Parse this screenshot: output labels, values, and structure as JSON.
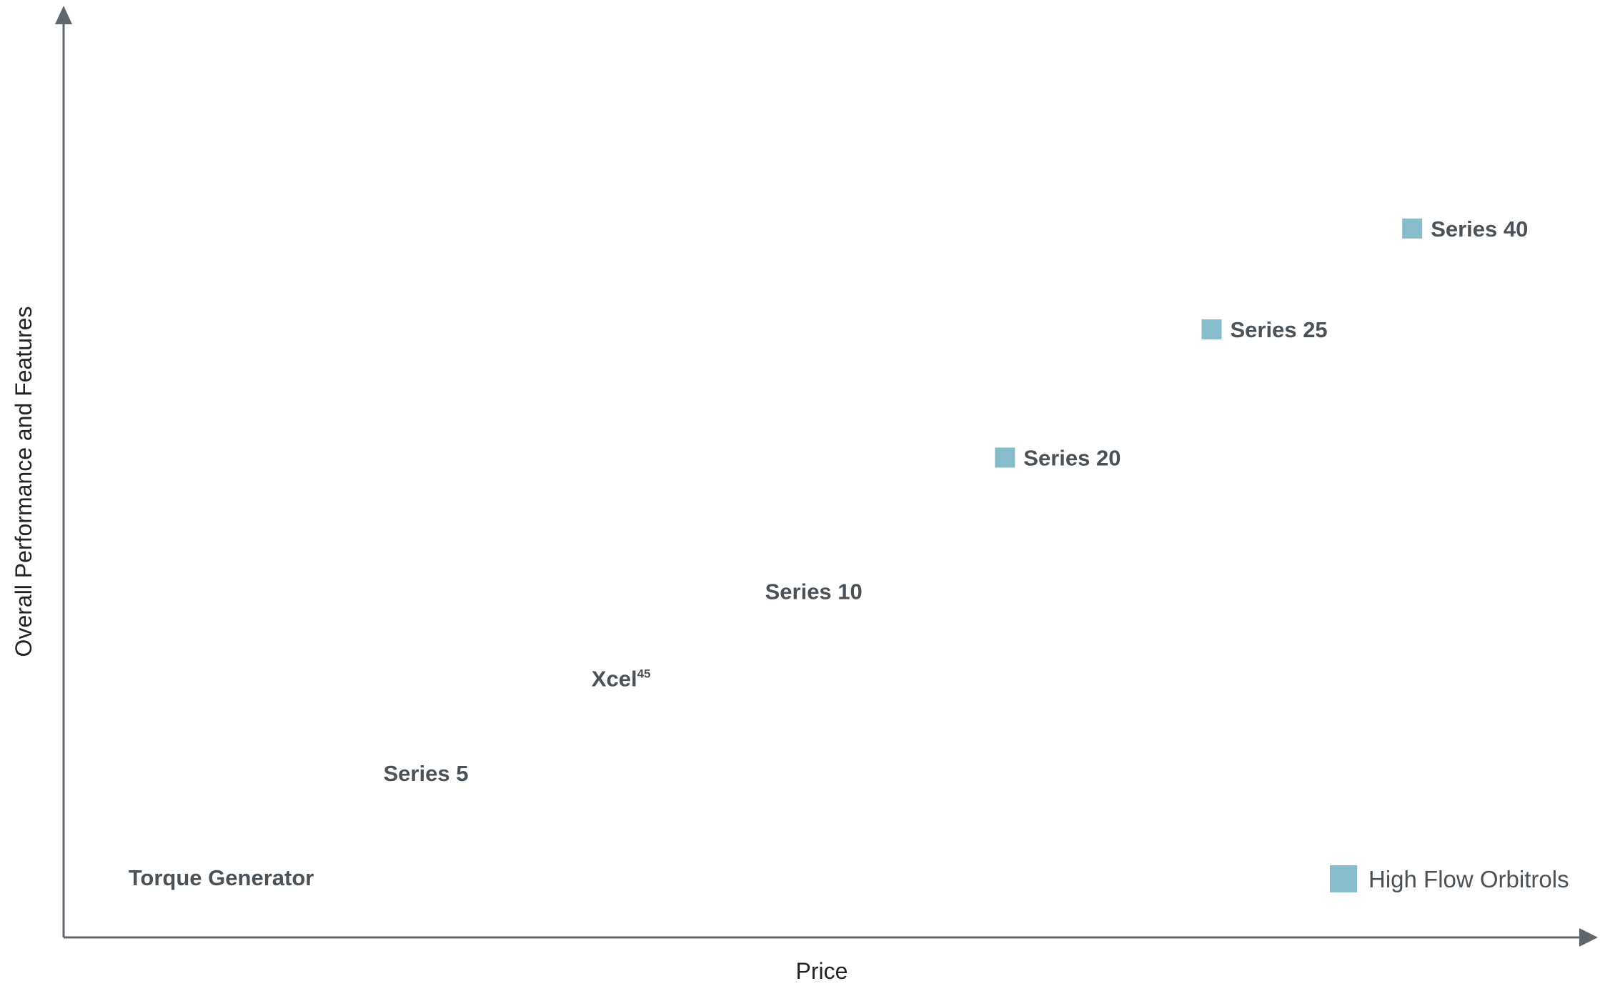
{
  "chart_data": {
    "type": "scatter",
    "xlabel": "Price",
    "ylabel": "Overall Performance and Features",
    "xlim": [
      0,
      100
    ],
    "ylim": [
      0,
      100
    ],
    "grid": false,
    "ticks_shown": false,
    "marker_color": "#86bccb",
    "axis_color": "#5f666d",
    "label_color": "#4a5157",
    "legend": {
      "position": "bottom-right",
      "entries": [
        {
          "label": "High Flow Orbitrols",
          "marker": "square",
          "color": "#86bccb"
        }
      ]
    },
    "points": [
      {
        "label": "Torque Generator",
        "sup": "",
        "x": 4.3,
        "y": 6.6,
        "marker": false
      },
      {
        "label": "Series 5",
        "sup": "",
        "x": 21.2,
        "y": 18.1,
        "marker": false
      },
      {
        "label": "Xcel",
        "sup": "45",
        "x": 35.0,
        "y": 28.5,
        "marker": false
      },
      {
        "label": "Series 10",
        "sup": "",
        "x": 46.5,
        "y": 38.1,
        "marker": false
      },
      {
        "label": "Series 20",
        "sup": "",
        "x": 62.4,
        "y": 52.8,
        "marker": true
      },
      {
        "label": "Series 25",
        "sup": "",
        "x": 76.1,
        "y": 66.9,
        "marker": true
      },
      {
        "label": "Series 40",
        "sup": "",
        "x": 89.4,
        "y": 78.0,
        "marker": true
      }
    ]
  }
}
